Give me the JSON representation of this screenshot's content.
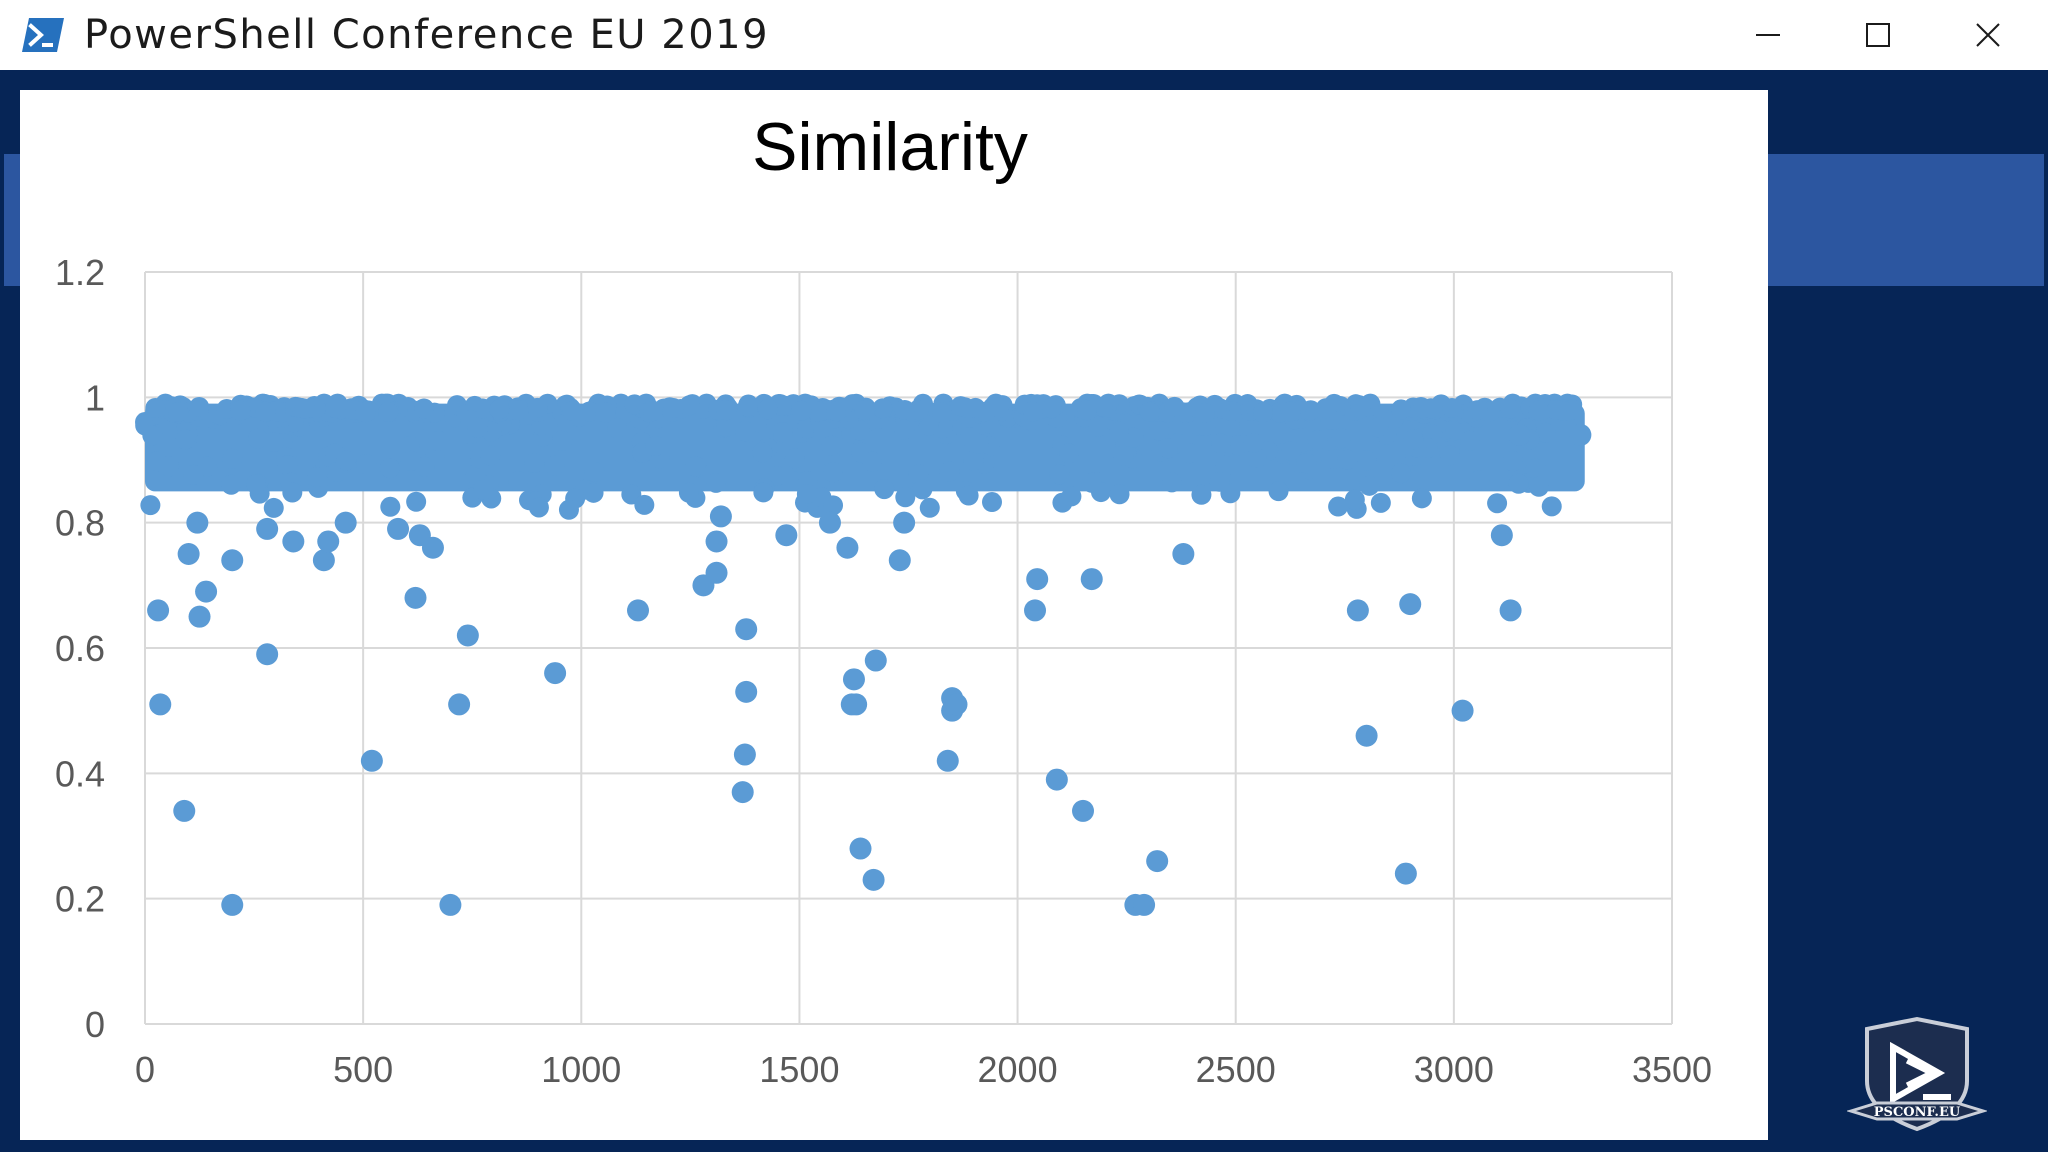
{
  "window": {
    "title": "PowerShell Conference EU 2019",
    "app_icon": "powershell-icon",
    "controls": [
      "minimize-icon",
      "maximize-icon",
      "close-icon"
    ]
  },
  "colors": {
    "background": "#062556",
    "accent_band": "#2c56a0",
    "marker": "#5b9bd5",
    "grid": "#d9d9d9"
  },
  "logo": {
    "text": "PSCONF.EU"
  },
  "chart_data": {
    "type": "scatter",
    "title": "Similarity",
    "xlabel": "",
    "ylabel": "",
    "xlim": [
      0,
      3500
    ],
    "ylim": [
      0,
      1.2
    ],
    "x_ticks": [
      0,
      500,
      1000,
      1500,
      2000,
      2500,
      3000,
      3500
    ],
    "y_ticks": [
      0,
      0.2,
      0.4,
      0.6,
      0.8,
      1,
      1.2
    ],
    "x_tick_labels": [
      "0",
      "500",
      "1000",
      "1500",
      "2000",
      "2500",
      "3000",
      "3500"
    ],
    "y_tick_labels": [
      "0",
      "0.2",
      "0.4",
      "0.6",
      "0.8",
      "1",
      "1.2"
    ],
    "grid": true,
    "legend": "none",
    "dense_band": {
      "x_range": [
        0,
        3300
      ],
      "y_range": [
        0.85,
        0.99
      ]
    },
    "series": [
      {
        "name": "",
        "points": [
          [
            30,
            0.66
          ],
          [
            35,
            0.51
          ],
          [
            90,
            0.34
          ],
          [
            100,
            0.75
          ],
          [
            120,
            0.8
          ],
          [
            125,
            0.65
          ],
          [
            140,
            0.69
          ],
          [
            200,
            0.19
          ],
          [
            200,
            0.74
          ],
          [
            280,
            0.59
          ],
          [
            280,
            0.79
          ],
          [
            340,
            0.77
          ],
          [
            410,
            0.74
          ],
          [
            420,
            0.77
          ],
          [
            460,
            0.8
          ],
          [
            520,
            0.42
          ],
          [
            580,
            0.79
          ],
          [
            620,
            0.68
          ],
          [
            630,
            0.78
          ],
          [
            660,
            0.76
          ],
          [
            700,
            0.19
          ],
          [
            720,
            0.51
          ],
          [
            740,
            0.62
          ],
          [
            940,
            0.56
          ],
          [
            1130,
            0.66
          ],
          [
            1280,
            0.7
          ],
          [
            1310,
            0.72
          ],
          [
            1310,
            0.77
          ],
          [
            1320,
            0.81
          ],
          [
            1370,
            0.37
          ],
          [
            1375,
            0.43
          ],
          [
            1378,
            0.53
          ],
          [
            1378,
            0.63
          ],
          [
            1470,
            0.78
          ],
          [
            1570,
            0.8
          ],
          [
            1610,
            0.76
          ],
          [
            1620,
            0.51
          ],
          [
            1625,
            0.55
          ],
          [
            1630,
            0.51
          ],
          [
            1640,
            0.28
          ],
          [
            1670,
            0.23
          ],
          [
            1675,
            0.58
          ],
          [
            1730,
            0.74
          ],
          [
            1740,
            0.8
          ],
          [
            1840,
            0.42
          ],
          [
            1850,
            0.5
          ],
          [
            1850,
            0.52
          ],
          [
            1860,
            0.51
          ],
          [
            2040,
            0.66
          ],
          [
            2045,
            0.71
          ],
          [
            2090,
            0.39
          ],
          [
            2150,
            0.34
          ],
          [
            2170,
            0.71
          ],
          [
            2270,
            0.19
          ],
          [
            2290,
            0.19
          ],
          [
            2320,
            0.26
          ],
          [
            2380,
            0.75
          ],
          [
            2780,
            0.66
          ],
          [
            2800,
            0.46
          ],
          [
            2890,
            0.24
          ],
          [
            2900,
            0.67
          ],
          [
            3020,
            0.5
          ],
          [
            3110,
            0.78
          ],
          [
            3130,
            0.66
          ],
          [
            3150,
            0.94
          ],
          [
            3290,
            0.94
          ]
        ]
      }
    ]
  }
}
